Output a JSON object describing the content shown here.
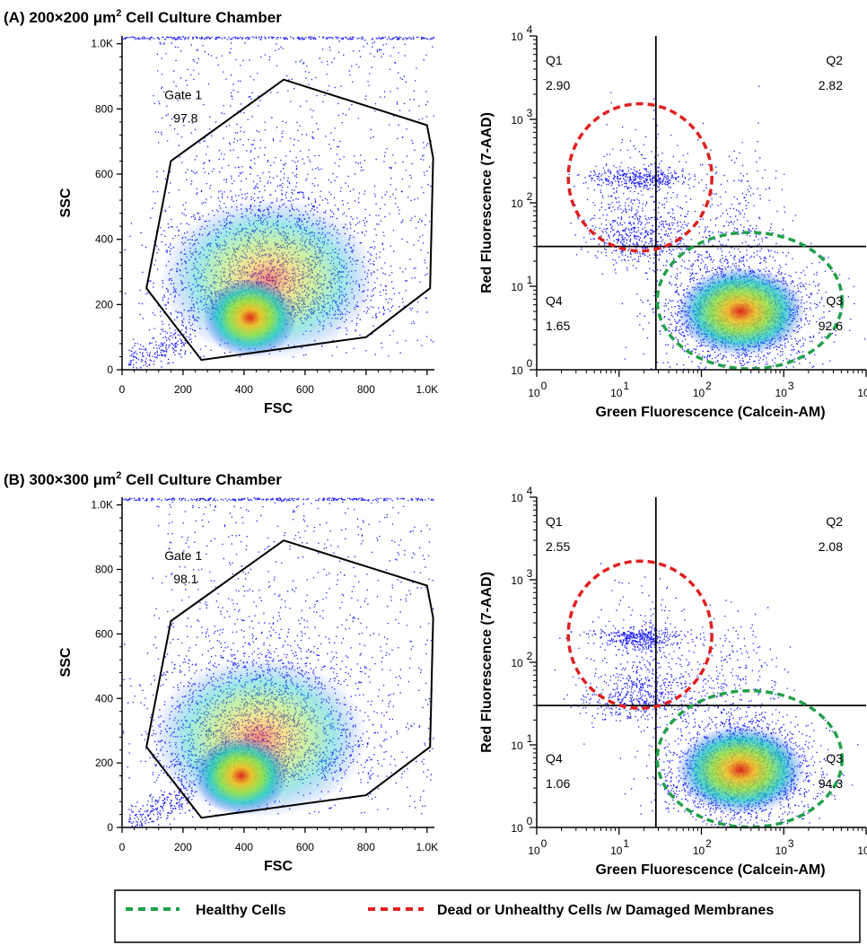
{
  "colors": {
    "gate_line": "#000000",
    "healthy_circle": "#21a04a",
    "dead_circle": "#e02020",
    "density_low": "#1a1aff",
    "density_mid": "#18d4b0",
    "density_high": "#f0e020",
    "density_peak": "#e02010"
  },
  "panels": [
    {
      "title_prefix": "(A) 200×200 μm",
      "title_sup": "2",
      "title_suffix": " Cell Culture Chamber"
    },
    {
      "title_prefix": "(B) 300×300 μm",
      "title_sup": "2",
      "title_suffix": " Cell Culture Chamber"
    }
  ],
  "legend": {
    "healthy": "Healthy Cells",
    "dead": "Dead or Unhealthy Cells /w Damaged Membranes"
  },
  "chart_data": [
    {
      "type": "scatter",
      "panel": "A",
      "xlabel": "FSC",
      "ylabel": "SSC",
      "xlim": [
        0,
        1024
      ],
      "ylim": [
        0,
        1024
      ],
      "x_ticks": [
        "0",
        "200",
        "400",
        "600",
        "800",
        "1.0K"
      ],
      "y_ticks": [
        "0",
        "200",
        "400",
        "600",
        "800",
        "1.0K"
      ],
      "x_tick_values": [
        0,
        200,
        400,
        600,
        800,
        1000
      ],
      "y_tick_values": [
        0,
        200,
        400,
        600,
        800,
        1000
      ],
      "density_peak": [
        420,
        160
      ],
      "gate": {
        "name": "Gate 1",
        "percent": "97.8",
        "polygon": [
          [
            80,
            250
          ],
          [
            160,
            640
          ],
          [
            530,
            890
          ],
          [
            1000,
            750
          ],
          [
            1020,
            650
          ],
          [
            1010,
            250
          ],
          [
            800,
            100
          ],
          [
            260,
            30
          ]
        ]
      }
    },
    {
      "type": "scatter",
      "panel": "A",
      "scale": "log",
      "xlabel": "Green Fluorescence (Calcein-AM)",
      "ylabel": "Red Fluorescence (7-AAD)",
      "xlim": [
        1,
        10000
      ],
      "ylim": [
        1,
        10000
      ],
      "x_ticks": [
        "10",
        "10",
        "10",
        "10",
        "10"
      ],
      "x_tick_exp": [
        "0",
        "1",
        "2",
        "3",
        "4"
      ],
      "y_ticks": [
        "10",
        "10",
        "10",
        "10",
        "10"
      ],
      "y_tick_exp": [
        "0",
        "1",
        "2",
        "3",
        "4"
      ],
      "quadrant_divider": [
        28,
        30
      ],
      "quadrants": [
        {
          "name": "Q1",
          "value": "2.90"
        },
        {
          "name": "Q2",
          "value": "2.82"
        },
        {
          "name": "Q3",
          "value": "92.6"
        },
        {
          "name": "Q4",
          "value": "1.65"
        }
      ],
      "healthy_cluster_center": [
        300,
        5
      ],
      "dead_cluster_center": [
        18,
        150
      ]
    },
    {
      "type": "scatter",
      "panel": "B",
      "xlabel": "FSC",
      "ylabel": "SSC",
      "xlim": [
        0,
        1024
      ],
      "ylim": [
        0,
        1024
      ],
      "x_ticks": [
        "0",
        "200",
        "400",
        "600",
        "800",
        "1.0K"
      ],
      "y_ticks": [
        "0",
        "200",
        "400",
        "600",
        "800",
        "1.0K"
      ],
      "x_tick_values": [
        0,
        200,
        400,
        600,
        800,
        1000
      ],
      "y_tick_values": [
        0,
        200,
        400,
        600,
        800,
        1000
      ],
      "density_peak": [
        390,
        160
      ],
      "gate": {
        "name": "Gate 1",
        "percent": "98.1",
        "polygon": [
          [
            80,
            250
          ],
          [
            160,
            640
          ],
          [
            530,
            890
          ],
          [
            1000,
            750
          ],
          [
            1020,
            650
          ],
          [
            1010,
            250
          ],
          [
            800,
            100
          ],
          [
            260,
            30
          ]
        ]
      }
    },
    {
      "type": "scatter",
      "panel": "B",
      "scale": "log",
      "xlabel": "Green Fluorescence (Calcein-AM)",
      "ylabel": "Red Fluorescence (7-AAD)",
      "xlim": [
        1,
        10000
      ],
      "ylim": [
        1,
        10000
      ],
      "x_ticks": [
        "10",
        "10",
        "10",
        "10",
        "10"
      ],
      "x_tick_exp": [
        "0",
        "1",
        "2",
        "3",
        "4"
      ],
      "y_ticks": [
        "10",
        "10",
        "10",
        "10",
        "10"
      ],
      "y_tick_exp": [
        "0",
        "1",
        "2",
        "3",
        "4"
      ],
      "quadrant_divider": [
        28,
        30
      ],
      "quadrants": [
        {
          "name": "Q1",
          "value": "2.55"
        },
        {
          "name": "Q2",
          "value": "2.08"
        },
        {
          "name": "Q3",
          "value": "94.3"
        },
        {
          "name": "Q4",
          "value": "1.06"
        }
      ],
      "healthy_cluster_center": [
        300,
        5
      ],
      "dead_cluster_center": [
        18,
        160
      ]
    }
  ]
}
